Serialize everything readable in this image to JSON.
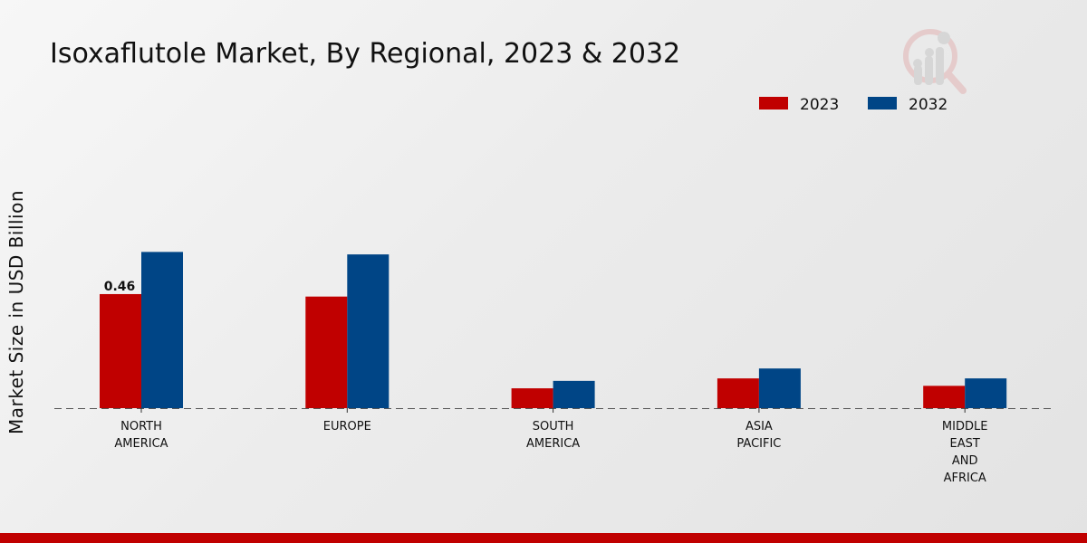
{
  "chart_data": {
    "type": "bar",
    "title": "Isoxaflutole Market, By Regional, 2023 & 2032",
    "xlabel": "",
    "ylabel": "Market Size in USD Billion",
    "ylim": [
      0,
      0.7
    ],
    "grid": false,
    "legend_position": "top-right",
    "categories": [
      [
        "NORTH",
        "AMERICA"
      ],
      [
        "EUROPE"
      ],
      [
        "SOUTH",
        "AMERICA"
      ],
      [
        "ASIA",
        "PACIFIC"
      ],
      [
        "MIDDLE",
        "EAST",
        "AND",
        "AFRICA"
      ]
    ],
    "series": [
      {
        "name": "2023",
        "color": "#c00000",
        "values": [
          0.46,
          0.45,
          0.08,
          0.12,
          0.09
        ]
      },
      {
        "name": "2032",
        "color": "#004586",
        "values": [
          0.63,
          0.62,
          0.11,
          0.16,
          0.12
        ]
      }
    ],
    "data_labels": [
      {
        "series": 0,
        "category": 0,
        "text": "0.46"
      }
    ]
  },
  "branding": {
    "logo_icon": "market-research-logo-icon",
    "footer_color": "#c00000"
  }
}
